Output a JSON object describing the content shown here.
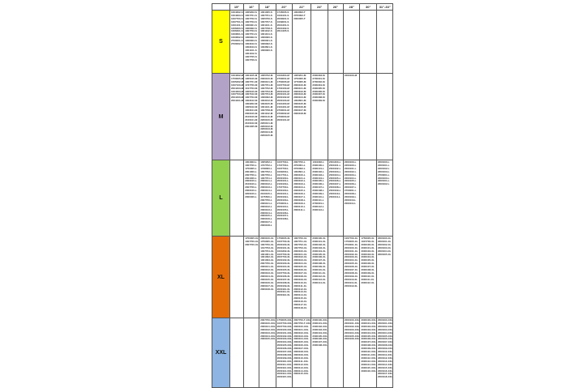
{
  "table": {
    "headers": [
      "15\"",
      "16\"",
      "18\"",
      "20\"",
      "22\"",
      "24\"",
      "26\"",
      "28\"",
      "30\"",
      "31\"-33\""
    ],
    "rows": [
      {
        "size": "S",
        "color": "#FFFF00",
        "cells": [
          [
            "1004302-S",
            "1004303-S",
            "1007700-S",
            "1007701-S",
            "1001101-S",
            "1006300-S",
            "1006301-S",
            "1003601-S",
            "1003602-S",
            "2700001-S",
            "2700002-S"
          ],
          [
            "1005202-S",
            "1007701-S",
            "1007702-S",
            "1007703-S",
            "1006301-S",
            "1006302-S",
            "1007703-S",
            "1007704-S",
            "1006302-S",
            "1006303-S",
            "1003102-S",
            "1003103-S",
            "1001101-S",
            "1001102-S",
            "1007705-S",
            "1007706-S"
          ],
          [
            "1001005-S",
            "1007701-S",
            "1005706-S",
            "1007707-S",
            "1001101-S",
            "1007708-S",
            "1001102-S",
            "1001104-S",
            "1006300-S",
            "1006301-S",
            "1006302-S",
            "1003601-S",
            "1006300-S"
          ],
          [
            "1745005-S",
            "1003101-S",
            "2000901-S",
            "1009001-S",
            "2004401-S",
            "2004402-S",
            "2014405-S"
          ],
          [
            "1003002-T",
            "2705002-T",
            "2000005-T"
          ],
          [],
          [],
          [],
          [],
          []
        ]
      },
      {
        "size": "M",
        "color": "#B3A2C7",
        "cells": [
          [
            "1004302-M",
            "1750005-M",
            "1005202-M",
            "1007100-M",
            "2004403-M",
            "1004303-M",
            "1007700-M",
            "2004400-M",
            "2004401-M"
          ],
          [
            "1001105-M",
            "1005100-M",
            "1007701-M",
            "1737700-M",
            "1017703-M",
            "1005100-M",
            "1007102-M",
            "1007703-M",
            "1003102-M",
            "1003202-M",
            "1005102-M",
            "1003104-M",
            "2000100-M",
            "2100100-M",
            "2100101-M",
            "2100102-M",
            "2004405-M"
          ],
          [
            "1005702-M",
            "2000100-M",
            "2000101-M",
            "1007701-M",
            "1007702-M",
            "1007703-M",
            "1007704-M",
            "1006302-M",
            "1003102-M",
            "1003105-M",
            "1001101-M",
            "1007708-M",
            "1001102-M",
            "2000110-M",
            "2200100-M",
            "2200101-M",
            "2200102-M",
            "2200103-M",
            "2200104-M",
            "2200105-M"
          ],
          [
            "1004304-M",
            "2700001-M",
            "1750005-M",
            "1007700-M",
            "1700100-M",
            "2000100-M",
            "2000101-M",
            "2000102-M",
            "2000103-M",
            "2104400-M",
            "2104401-M",
            "2700001-M",
            "2700002-M",
            "2700003-M",
            "2000101-M"
          ],
          [
            "1005201-M",
            "1750005-M",
            "1770005-M",
            "2000100-M",
            "2000101-M",
            "2000102-M",
            "2000103-M",
            "2000104-M",
            "1003601-M",
            "2000105-M",
            "2000106-M",
            "2000107-M",
            "2000108-M"
          ],
          [
            "2000303-M",
            "2700001-M",
            "2700002-M",
            "2000304-M",
            "2000305-M",
            "2000306-M",
            "2000307-M",
            "2000308-M",
            "2000309-M"
          ],
          [],
          [
            "2000100-M"
          ],
          [],
          []
        ]
      },
      {
        "size": "L",
        "color": "#92D050",
        "cells": [
          [],
          [
            "1004303-L",
            "1007700-L",
            "1750005-L",
            "2001000-L",
            "2007700-L",
            "2004400-L",
            "2000100-L",
            "2100100-L",
            "2007700-L",
            "2000100-L",
            "2200100-L",
            "2000400-L"
          ],
          [
            "1005202-L",
            "1737702-L",
            "1738000-L",
            "1007702-L",
            "1007700-L",
            "1007701-L",
            "2000101-L",
            "2000102-L",
            "2000103-L",
            "2000104-L",
            "2100105-L",
            "1175500-L",
            "2007700-L",
            "2000101-L",
            "2000102-L",
            "2000103-L",
            "2000104-L",
            "2000105-L",
            "2000106-L",
            "2000107-L",
            "2000108-L"
          ],
          [
            "1007700-L",
            "1737700-L",
            "1007700-L",
            "1000200-L",
            "1017701-L",
            "2000100-L",
            "2000101-L",
            "2100100-L",
            "1737700-L",
            "2200100-L",
            "2000101-L",
            "2000102-L",
            "2000103-L",
            "2700001-L",
            "2000104-L",
            "2000105-L",
            "2000106-L",
            "2000107-L",
            "2000108-L"
          ],
          [
            "2007700-L",
            "2700001-L",
            "2700002-L",
            "1003601-L",
            "2000100-L",
            "2000101-L",
            "2000102-L",
            "2000103-L",
            "2000104-L",
            "2000105-L",
            "2000106-L",
            "2000107-L",
            "2000108-L",
            "2000109-L",
            "2000110-L",
            "2000111-L"
          ],
          [
            "1004302-L",
            "2000100-L",
            "2000101-L",
            "2000102-L",
            "2000103-L",
            "2000104-L",
            "2000105-L",
            "2000106-L",
            "2000107-L",
            "2000108-L",
            "2000109-L",
            "2000110-L",
            "2000111-L",
            "2700001-L",
            "2000112-L",
            "2000113-L"
          ],
          [
            "2004400-L",
            "2000101-L",
            "2000102-L",
            "2000103-L",
            "2000104-L",
            "2000105-L",
            "2000106-L",
            "2000107-L",
            "2000108-L",
            "2000109-L",
            "2000110-L",
            "2000111-L"
          ],
          [
            "2000100-L",
            "2200100-L",
            "2000101-L",
            "2000102-L",
            "2000103-L",
            "2000104-L",
            "2000105-L",
            "2000106-L",
            "2000107-L",
            "2700001-L",
            "2000108-L",
            "2000109-L",
            "2000110-L",
            "2000111-L"
          ],
          [],
          [
            "2200100-L",
            "2200101-L",
            "2200102-L",
            "2200103-L",
            "2700001-L",
            "2000100-L",
            "2000101-L",
            "2000102-L"
          ]
        ]
      },
      {
        "size": "XL",
        "color": "#E36C09",
        "cells": [
          [],
          [
            "1750005-XL",
            "1007700-XL",
            "2007700-XL"
          ],
          [
            "2000100-XL",
            "1750005-XL",
            "1007700-XL",
            "1017703-XL",
            "1007704-XL",
            "1001001-XL",
            "1001002-XL",
            "1001003-XL",
            "2007700-XL",
            "2000101-XL",
            "2000102-XL",
            "2000103-XL",
            "2000104-XL",
            "2000105-XL",
            "2000106-XL",
            "2000107-XL",
            "2000108-XL"
          ],
          [
            "1750005-XL",
            "1007700-XL",
            "2000100-XL",
            "2000101-XL",
            "1004302-XL",
            "1007700-XL",
            "2007700-XL",
            "2000102-XL",
            "2000103-XL",
            "2000104-XL",
            "2000105-XL",
            "1007700-XL",
            "2000106-XL",
            "2000107-XL",
            "2000108-XL",
            "2000109-XL",
            "2000110-XL",
            "2000111-XL",
            "2000112-XL"
          ],
          [
            "1007700-XL",
            "1007701-XL",
            "1007702-XL",
            "1007703-XL",
            "2000100-XL",
            "2000101-XL",
            "2000102-XL",
            "2000103-XL",
            "2000104-XL",
            "2000105-XL",
            "2000106-XL",
            "2000107-XL",
            "2000108-XL",
            "2000109-XL",
            "2000110-XL",
            "2000111-XL",
            "2000112-XL",
            "2000113-XL",
            "2000114-XL",
            "2000115-XL",
            "2000116-XL",
            "2000117-XL",
            "2000118-XL"
          ],
          [
            "2000100-XL",
            "2000101-XL",
            "2000102-XL",
            "2000103-XL",
            "2000104-XL",
            "2000105-XL",
            "2000106-XL",
            "2000107-XL",
            "2000108-XL",
            "2000109-XL",
            "2000110-XL",
            "2000111-XL",
            "2000112-XL",
            "2000113-XL",
            "2000114-XL"
          ],
          [],
          [
            "1007700-XL",
            "1750005-XL",
            "2700001-XL",
            "2000100-XL",
            "2000101-XL",
            "2000102-XL",
            "2000103-XL",
            "2000104-XL",
            "2000105-XL",
            "2000106-XL",
            "2000107-XL",
            "2000108-XL",
            "2000109-XL",
            "2000110-XL",
            "2000111-XL",
            "2000112-XL"
          ],
          [
            "1750005-XL",
            "1007700-XL",
            "2000100-XL",
            "2000101-XL",
            "2000102-XL",
            "2000103-XL",
            "2000104-XL",
            "2000105-XL",
            "2000106-XL",
            "2000107-XL",
            "2000108-XL",
            "2000109-XL",
            "2000110-XL",
            "2000111-XL",
            "2000112-XL"
          ],
          [
            "2000100-XL",
            "2000101-XL",
            "2000102-XL",
            "2000103-XL",
            "2000104-XL",
            "2000105-XL"
          ]
        ]
      },
      {
        "size": "XXL",
        "color": "#8DB4E2",
        "cells": [
          [],
          [],
          [
            "2007700-XXL",
            "2000100-XXL",
            "2000101-XXL",
            "2000102-XXL",
            "2000103-XXL",
            "2000104-XXL",
            "2000105-XXL"
          ],
          [
            "1750005-XXL",
            "1007700-XXL",
            "2007700-XXL",
            "2000100-XXL",
            "2000101-XXL",
            "2000102-XXL",
            "2000103-XXL",
            "2000104-XXL",
            "2000105-XXL",
            "2000106-XXL",
            "2000107-XXL",
            "2000108-XXL",
            "2000109-XXL",
            "2000110-XXL",
            "2000111-XXL",
            "2000112-XXL",
            "2000113-XXL",
            "2000114-XXL",
            "2000115-XXL"
          ],
          [
            "2007700-T-XXL",
            "2007700-T-XXL",
            "2000100-XXL",
            "2000101-XXL",
            "2000102-XXL",
            "2000103-XXL",
            "2000104-XXL",
            "2000105-XXL",
            "2000106-XXL",
            "2000107-XXL",
            "2000108-XXL",
            "2000109-XXL",
            "2000110-XXL",
            "2000111-XXL",
            "2000112-XXL",
            "2000113-XXL",
            "2000114-XXL",
            "2000115-XXL"
          ],
          [
            "2000100-XXL",
            "2000101-XXL",
            "2000102-XXL",
            "2000103-XXL",
            "2000104-XXL",
            "2000105-XXL",
            "2000106-XXL",
            "2000107-XXL",
            "2000108-XXL"
          ],
          [],
          [
            "2000100-XXL",
            "2000101-XXL",
            "2000102-XXL",
            "2000103-XXL",
            "2000104-XXL",
            "2000105-XXL",
            "2000106-XXL"
          ],
          [
            "2000100-XXL",
            "2000101-XXL",
            "2000102-XXL",
            "2000103-XXL",
            "2000104-XXL",
            "2000105-XXL",
            "2000106-XXL",
            "2000107-XXL",
            "2000108-XXL",
            "2000109-XXL",
            "2000110-XXL",
            "2000111-XXL",
            "2000112-XXL",
            "2000113-XXL",
            "2000114-XXL",
            "2000115-XXL",
            "2000116-XXL"
          ],
          [
            "2000100-XXL",
            "2000101-XXL",
            "2000102-XXL",
            "2000103-XXL",
            "2000104-XXL",
            "2000105-XXL",
            "2000106-XXL",
            "2000107-XXL",
            "2000108-XXL",
            "2000109-XXL",
            "2000110-XXL",
            "2000111-XXL",
            "2000112-XXL",
            "2000113-XXL",
            "2000114-XXL",
            "2000115-XXL",
            "2000116-XXL",
            "2000117-XXL",
            "2000118-XXL"
          ]
        ]
      }
    ]
  }
}
